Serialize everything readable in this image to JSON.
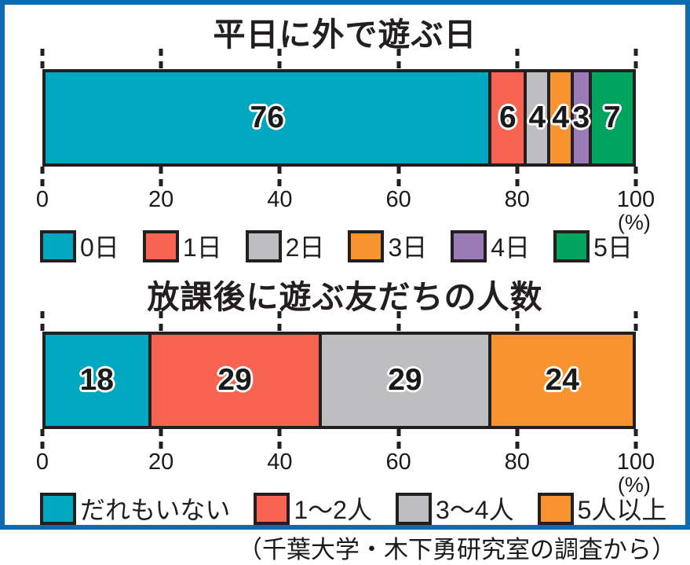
{
  "frame": {
    "border_color": "#0E6BAE"
  },
  "chart_data": [
    {
      "type": "bar",
      "orientation": "horizontal-stacked-percentage",
      "title": "平日に外で遊ぶ日",
      "unit_label": "(%)",
      "xlim": [
        0,
        100
      ],
      "axis_ticks": [
        0,
        20,
        40,
        60,
        80,
        100
      ],
      "legend_position": "bottom",
      "segments": [
        {
          "label": "0日",
          "value": 76,
          "color": "#00A8BF"
        },
        {
          "label": "1日",
          "value": 6,
          "color": "#F96452"
        },
        {
          "label": "2日",
          "value": 4,
          "color": "#BEBEC0"
        },
        {
          "label": "3日",
          "value": 4,
          "color": "#F89430"
        },
        {
          "label": "4日",
          "value": 3,
          "color": "#9B7BB7"
        },
        {
          "label": "5日",
          "value": 7,
          "color": "#00A45E"
        }
      ]
    },
    {
      "type": "bar",
      "orientation": "horizontal-stacked-percentage",
      "title": "放課後に遊ぶ友だちの人数",
      "unit_label": "(%)",
      "xlim": [
        0,
        100
      ],
      "axis_ticks": [
        0,
        20,
        40,
        60,
        80,
        100
      ],
      "legend_position": "bottom",
      "segments": [
        {
          "label": "だれもいない",
          "value": 18,
          "color": "#00A8BF"
        },
        {
          "label": "1～2人",
          "value": 29,
          "color": "#F96452"
        },
        {
          "label": "3～4人",
          "value": 29,
          "color": "#BEBEC0"
        },
        {
          "label": "5人以上",
          "value": 24,
          "color": "#F89430"
        }
      ]
    }
  ],
  "source_note": "（千葉大学・木下勇研究室の調査から）"
}
